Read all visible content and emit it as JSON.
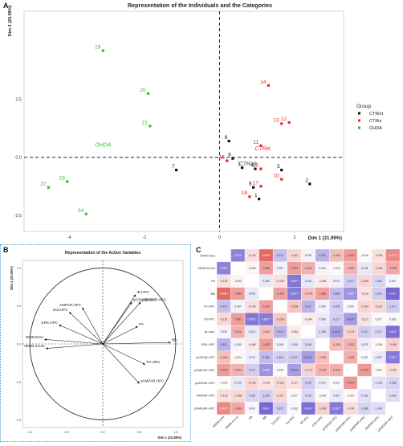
{
  "panels": {
    "a_letter": "A",
    "b_letter": "B",
    "c_letter": "C"
  },
  "chart_data": [
    {
      "type": "scatter",
      "title": "Representation of the Individuals and the Categories",
      "xlabel": "Dim 1 (31.99%)",
      "ylabel": "Dim 2 (20.59%)",
      "xlim": [
        -5.2,
        3.3
      ],
      "ylim": [
        -3.2,
        6.3
      ],
      "x_ticks": [
        -4,
        -2,
        0,
        2
      ],
      "x_tick_labels": [
        "-4",
        "-2",
        "0",
        "2"
      ],
      "y_ticks": [
        -2.5,
        0,
        2.5
      ],
      "y_tick_labels": [
        "-2.5",
        "0.0",
        "2.5"
      ],
      "grid": false,
      "legend": {
        "title": "Group",
        "placement": "right",
        "entries": [
          {
            "label": "CTRint",
            "color": "#111111"
          },
          {
            "label": "CTRis",
            "color": "#e8251f"
          },
          {
            "label": "OHDA",
            "color": "#2ec02e"
          }
        ]
      },
      "category_labels": [
        {
          "label": "OHDA",
          "x": -3.1,
          "y": 0.45,
          "color": "#2ec02e"
        },
        {
          "label": "CTRis",
          "x": 1.15,
          "y": 0.3,
          "color": "#e8251f"
        },
        {
          "label": "CTRint",
          "x": 0.75,
          "y": -0.35,
          "color": "#555555"
        }
      ],
      "points": [
        {
          "label": "1",
          "x": 1.05,
          "y": -1.8,
          "group": "CTRint"
        },
        {
          "label": "2",
          "x": 2.4,
          "y": -1.15,
          "group": "CTRint"
        },
        {
          "label": "3",
          "x": 0.6,
          "y": -0.45,
          "group": "CTRint"
        },
        {
          "label": "4",
          "x": 0.95,
          "y": -0.5,
          "group": "CTRint"
        },
        {
          "label": "5",
          "x": 1.65,
          "y": -0.55,
          "group": "CTRint"
        },
        {
          "label": "6",
          "x": 0.35,
          "y": -0.05,
          "group": "CTRint"
        },
        {
          "label": "7",
          "x": -1.15,
          "y": -0.55,
          "group": "CTRint"
        },
        {
          "label": "8",
          "x": 0.9,
          "y": -1.3,
          "group": "CTRint"
        },
        {
          "label": "9",
          "x": 0.25,
          "y": 0.7,
          "group": "CTRint"
        },
        {
          "label": "10",
          "x": 1.65,
          "y": -0.95,
          "group": "CTRis"
        },
        {
          "label": "11",
          "x": 1.1,
          "y": 0.5,
          "group": "CTRis"
        },
        {
          "label": "12",
          "x": 1.85,
          "y": 1.5,
          "group": "CTRis"
        },
        {
          "label": "13",
          "x": 1.65,
          "y": 1.45,
          "group": "CTRis"
        },
        {
          "label": "14",
          "x": 1.3,
          "y": 3.1,
          "group": "CTRis"
        },
        {
          "label": "15",
          "x": 0.2,
          "y": -0.15,
          "group": "CTRis"
        },
        {
          "label": "16",
          "x": 1.1,
          "y": -0.5,
          "group": "CTRis"
        },
        {
          "label": "17",
          "x": 1.1,
          "y": -1.25,
          "group": "CTRis"
        },
        {
          "label": "18",
          "x": 0.8,
          "y": -1.7,
          "group": "CTRis"
        },
        {
          "label": "19",
          "x": -3.1,
          "y": 4.6,
          "group": "OHDA"
        },
        {
          "label": "20",
          "x": -1.9,
          "y": 2.75,
          "group": "OHDA"
        },
        {
          "label": "21",
          "x": -1.85,
          "y": 1.35,
          "group": "OHDA"
        },
        {
          "label": "22",
          "x": -4.55,
          "y": -1.3,
          "group": "OHDA"
        },
        {
          "label": "23",
          "x": -4.05,
          "y": -1.05,
          "group": "OHDA"
        },
        {
          "label": "24",
          "x": -3.55,
          "y": -2.45,
          "group": "OHDA"
        }
      ]
    },
    {
      "type": "scatter",
      "title": "Representation of the Active Variables",
      "xlabel": "Dim 1 (31.99%)",
      "ylabel": "Dim 2 (20.59%)",
      "xlim": [
        -1.1,
        1.1
      ],
      "ylim": [
        -1.1,
        1.1
      ],
      "x_ticks": [
        -1,
        -0.5,
        0,
        0.5,
        1
      ],
      "x_tick_labels": [
        "-1.0",
        "-0.5",
        "0.0",
        "0.5",
        "1.0"
      ],
      "y_ticks": [
        -1,
        -0.5,
        0,
        0.5,
        1
      ],
      "y_tick_labels": [
        "-1.0",
        "-0.5",
        "0.0",
        "0.5",
        "1.0"
      ],
      "grid": false,
      "vectors": [
        {
          "label": "IR.HPC",
          "x": 0.45,
          "y": 0.65
        },
        {
          "label": "pGSK3β.HPC",
          "x": 0.4,
          "y": 0.55
        },
        {
          "label": "pNMDAR.HPC",
          "x": 0.52,
          "y": 0.55
        },
        {
          "label": "PA",
          "x": 0.48,
          "y": 0.23
        },
        {
          "label": "BB",
          "x": 0.93,
          "y": 0.02
        },
        {
          "label": "TH.HPC",
          "x": 0.58,
          "y": -0.27
        },
        {
          "label": "pAMPAR.HPC",
          "x": 0.5,
          "y": -0.52
        },
        {
          "label": "AMPAR.HPC",
          "x": -0.28,
          "y": 0.48
        },
        {
          "label": "INS.HPC",
          "x": -0.46,
          "y": 0.42
        },
        {
          "label": "ERK.HPC",
          "x": -0.6,
          "y": 0.25
        },
        {
          "label": "MWM.time",
          "x": -0.8,
          "y": 0.06
        },
        {
          "label": "MWM.errors",
          "x": -0.78,
          "y": -0.06
        }
      ]
    },
    {
      "type": "heatmap",
      "variables": [
        "MWM.time",
        "MWM.errors",
        "PA",
        "BB",
        "TH-HPC",
        "TH-PFC",
        "IR-HPC",
        "ERK-HPC",
        "pGSK3β-HPC",
        "pNMDAR-HPC",
        "pAMPAR-HPC",
        "AMPAR-HPC",
        "pNMDAR-HPC"
      ],
      "values": [
        [
          null,
          0.533,
          -0.132,
          -0.608,
          0.272,
          -0.161,
          0.049,
          0.321,
          -0.26,
          -0.402,
          -0.016,
          -0.125,
          -0.477
        ],
        [
          0.533,
          null,
          -0.039,
          -0.388,
          0.057,
          -0.397,
          -0.316,
          0.049,
          -0.024,
          -0.302,
          0.103,
          -0.158,
          -0.349
        ],
        [
          -0.132,
          -0.039,
          null,
          0.095,
          -0.13,
          0.582,
          0.104,
          -0.088,
          0.074,
          0.217,
          -0.165,
          0.18,
          0.041
        ],
        [
          -0.608,
          -0.388,
          0.095,
          null,
          -0.375,
          0.562,
          -0.245,
          -0.383,
          0.286,
          0.456,
          -0.118,
          0.206,
          0.641
        ],
        [
          0.272,
          0.057,
          -0.13,
          -0.375,
          null,
          -0.236,
          0.317,
          0.056,
          0.205,
          0.025,
          -0.164,
          -0.157,
          0.217
        ],
        [
          -0.161,
          -0.397,
          0.582,
          0.562,
          -0.236,
          null,
          -0.084,
          0.098,
          0.217,
          0.413,
          -0.117,
          0.027,
          0.033
        ],
        [
          0.049,
          -0.316,
          0.104,
          -0.245,
          0.317,
          -0.084,
          null,
          0.155,
          0.416,
          -0.173,
          0.211,
          0.172,
          0.614
        ],
        [
          0.321,
          0.049,
          -0.088,
          -0.383,
          0.056,
          0.098,
          0.155,
          null,
          -0.259,
          -0.313,
          0.079,
          -0.026,
          -0.186
        ],
        [
          -0.26,
          -0.024,
          0.074,
          0.286,
          0.205,
          0.217,
          0.416,
          -0.259,
          null,
          -0.323,
          0.023,
          0.087,
          0.567
        ],
        [
          -0.402,
          -0.302,
          0.217,
          0.456,
          0.025,
          0.413,
          -0.173,
          -0.313,
          -0.323,
          null,
          -0.412,
          -0.027,
          -0.14
        ],
        [
          -0.016,
          0.103,
          -0.165,
          -0.118,
          -0.164,
          -0.117,
          0.211,
          0.079,
          0.023,
          -0.412,
          null,
          0.126,
          0.188
        ],
        [
          -0.125,
          -0.158,
          0.18,
          0.206,
          -0.157,
          0.027,
          0.172,
          -0.026,
          0.087,
          -0.027,
          0.126,
          null,
          0.148
        ],
        [
          -0.477,
          -0.349,
          0.041,
          0.641,
          0.217,
          0.033,
          0.614,
          -0.186,
          0.567,
          -0.14,
          0.188,
          0.148,
          null
        ]
      ],
      "significance": [
        [
          null,
          "*",
          "",
          "**",
          "",
          "",
          "",
          "",
          "",
          "*",
          "",
          "",
          "*"
        ],
        [
          "*",
          null,
          "",
          "",
          "",
          "",
          "",
          "",
          "",
          "",
          "",
          "",
          ""
        ],
        [
          "",
          "",
          null,
          "",
          "",
          "**",
          "",
          "",
          "",
          "",
          "",
          "",
          ""
        ],
        [
          "**",
          "",
          "",
          null,
          "",
          "**",
          "",
          "",
          "",
          "*",
          "",
          "",
          "*"
        ],
        [
          "",
          "",
          "",
          "",
          null,
          "",
          "",
          "",
          "",
          "",
          "",
          "",
          ""
        ],
        [
          "",
          "",
          "**",
          "**",
          "",
          null,
          "",
          "",
          "",
          "*",
          "",
          "",
          ""
        ],
        [
          "",
          "",
          "",
          "",
          "",
          "",
          null,
          "",
          "*",
          "",
          "",
          "",
          "*"
        ],
        [
          "",
          "",
          "",
          "",
          "",
          "",
          "",
          null,
          "",
          "",
          "",
          "",
          ""
        ],
        [
          "",
          "",
          "",
          "",
          "",
          "",
          "*",
          "",
          null,
          "",
          "",
          "",
          "*"
        ],
        [
          "*",
          "",
          "",
          "*",
          "",
          "*",
          "",
          "",
          "",
          null,
          "*",
          "",
          ""
        ],
        [
          "",
          "",
          "",
          "",
          "",
          "",
          "",
          "",
          "",
          "*",
          null,
          "",
          ""
        ],
        [
          "",
          "",
          "",
          "",
          "",
          "",
          "",
          "",
          "",
          "",
          "",
          null,
          ""
        ],
        [
          "*",
          "",
          "",
          "*",
          "",
          "",
          "*",
          "",
          "*",
          "",
          "",
          "",
          null
        ]
      ],
      "colors": {
        "positive": "#6a5acd",
        "negative": "#e0524e",
        "neutral": "#ffffff"
      }
    }
  ]
}
